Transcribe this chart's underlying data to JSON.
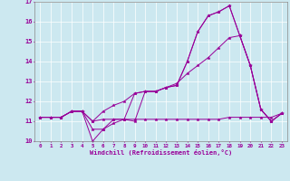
{
  "xlabel": "Windchill (Refroidissement éolien,°C)",
  "bg_color": "#cce8f0",
  "line_color": "#990099",
  "xlim": [
    -0.5,
    23.5
  ],
  "ylim": [
    10,
    17
  ],
  "yticks": [
    10,
    11,
    12,
    13,
    14,
    15,
    16,
    17
  ],
  "xticks": [
    0,
    1,
    2,
    3,
    4,
    5,
    6,
    7,
    8,
    9,
    10,
    11,
    12,
    13,
    14,
    15,
    16,
    17,
    18,
    19,
    20,
    21,
    22,
    23
  ],
  "series": [
    [
      11.2,
      11.2,
      11.2,
      11.5,
      11.5,
      10.6,
      10.6,
      11.1,
      11.1,
      11.0,
      12.5,
      12.5,
      12.7,
      12.8,
      14.0,
      15.5,
      16.3,
      16.5,
      16.8,
      15.3,
      13.8,
      11.6,
      11.0,
      11.4
    ],
    [
      11.2,
      11.2,
      11.2,
      11.5,
      11.5,
      10.0,
      10.6,
      10.9,
      11.1,
      12.4,
      12.5,
      12.5,
      12.7,
      12.8,
      14.0,
      15.5,
      16.3,
      16.5,
      16.8,
      15.3,
      13.8,
      11.6,
      11.0,
      11.4
    ],
    [
      11.2,
      11.2,
      11.2,
      11.5,
      11.5,
      11.0,
      11.1,
      11.1,
      11.1,
      11.1,
      11.1,
      11.1,
      11.1,
      11.1,
      11.1,
      11.1,
      11.1,
      11.1,
      11.2,
      11.2,
      11.2,
      11.2,
      11.2,
      11.4
    ],
    [
      11.2,
      11.2,
      11.2,
      11.5,
      11.5,
      11.0,
      11.5,
      11.8,
      12.0,
      12.4,
      12.5,
      12.5,
      12.7,
      12.9,
      13.4,
      13.8,
      14.2,
      14.7,
      15.2,
      15.3,
      13.8,
      11.6,
      11.0,
      11.4
    ]
  ]
}
